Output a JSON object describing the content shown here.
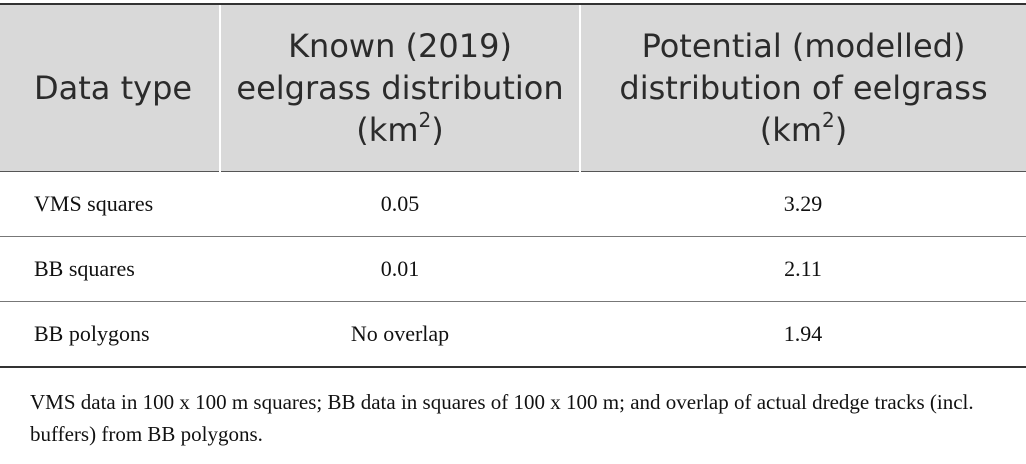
{
  "table": {
    "headers": [
      [
        "Data type"
      ],
      [
        "Known (2019) eelgrass distribution (km",
        "2",
        ")"
      ],
      [
        "Potential (modelled) distribution of eelgrass (km",
        "2",
        ")"
      ]
    ],
    "rows": [
      [
        "VMS squares",
        "0.05",
        "3.29"
      ],
      [
        "BB squares",
        "0.01",
        "2.11"
      ],
      [
        "BB polygons",
        "No overlap",
        "1.94"
      ]
    ]
  },
  "footnote": "VMS data in 100 x 100 m squares; BB data in squares of 100 x 100 m; and overlap of actual dredge tracks (incl. buffers) from BB polygons."
}
